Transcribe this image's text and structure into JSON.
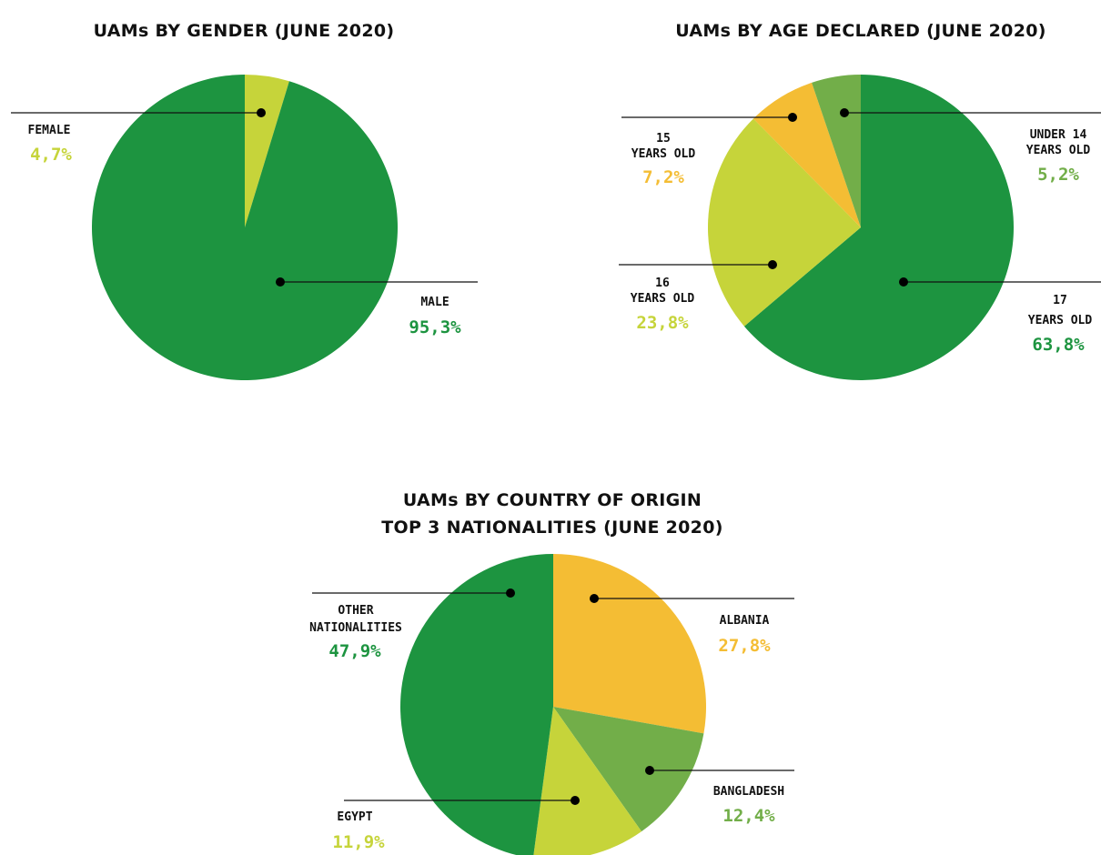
{
  "colors": {
    "dark_green": "#1d9440",
    "lime": "#c6d43a",
    "orange": "#f4bd34",
    "mid_green": "#72ae49"
  },
  "chart_data": [
    {
      "type": "pie",
      "title": "UAMs BY GENDER (JUNE 2020)",
      "slices": [
        {
          "label": "FEMALE",
          "value": 4.7,
          "value_text": "4,7%",
          "color": "#c6d43a"
        },
        {
          "label": "MALE",
          "value": 95.3,
          "value_text": "95,3%",
          "color": "#1d9440"
        }
      ]
    },
    {
      "type": "pie",
      "title": "UAMs BY AGE DECLARED (JUNE 2020)",
      "slices": [
        {
          "label": "17 YEARS OLD",
          "label_lines": [
            "17",
            "YEARS OLD"
          ],
          "value": 63.8,
          "value_text": "63,8%",
          "color": "#1d9440"
        },
        {
          "label": "16 YEARS OLD",
          "label_lines": [
            "16",
            "YEARS OLD"
          ],
          "value": 23.8,
          "value_text": "23,8%",
          "color": "#c6d43a"
        },
        {
          "label": "15 YEARS OLD",
          "label_lines": [
            "15",
            "YEARS OLD"
          ],
          "value": 7.2,
          "value_text": "7,2%",
          "color": "#f4bd34"
        },
        {
          "label": "UNDER 14 YEARS OLD",
          "label_lines": [
            "UNDER 14",
            "YEARS OLD"
          ],
          "value": 5.2,
          "value_text": "5,2%",
          "color": "#72ae49"
        }
      ]
    },
    {
      "type": "pie",
      "title": "UAMs BY COUNTRY OF ORIGIN",
      "subtitle": "TOP 3 NATIONALITIES (JUNE 2020)",
      "slices": [
        {
          "label": "ALBANIA",
          "value": 27.8,
          "value_text": "27,8%",
          "color": "#f4bd34"
        },
        {
          "label": "BANGLADESH",
          "value": 12.4,
          "value_text": "12,4%",
          "color": "#72ae49"
        },
        {
          "label": "EGYPT",
          "value": 11.9,
          "value_text": "11,9%",
          "color": "#c6d43a"
        },
        {
          "label": "OTHER NATIONALITIES",
          "label_lines": [
            "OTHER",
            "NATIONALITIES"
          ],
          "value": 47.9,
          "value_text": "47,9%",
          "color": "#1d9440"
        }
      ]
    }
  ]
}
